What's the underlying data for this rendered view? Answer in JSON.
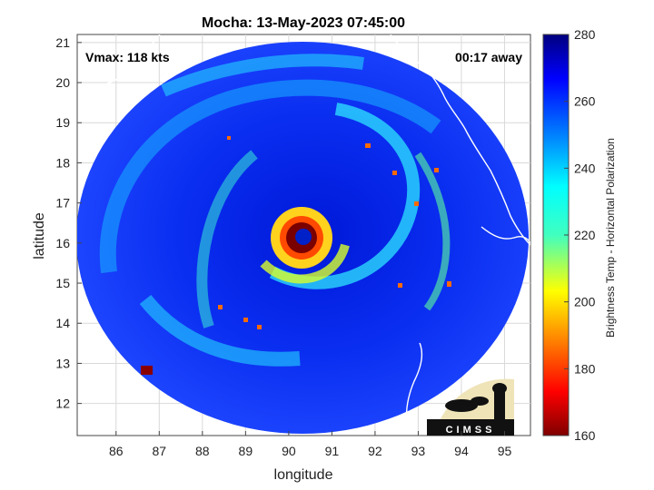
{
  "chart_data": {
    "type": "heatmap",
    "title": "Mocha: 13-May-2023 07:45:00",
    "xlabel": "longitude",
    "ylabel": "latitude",
    "xlim": [
      85.1,
      95.6
    ],
    "ylim": [
      11.2,
      21.2
    ],
    "x_ticks": [
      86,
      87,
      88,
      89,
      90,
      91,
      92,
      93,
      94,
      95
    ],
    "y_ticks": [
      12,
      13,
      14,
      15,
      16,
      17,
      18,
      19,
      20,
      21
    ],
    "grid": true,
    "storm_center": {
      "lon": 90.3,
      "lat": 16.1
    },
    "annotations": {
      "vmax": "Vmax: 118 kts",
      "time_offset": "00:17 away"
    },
    "colorbar": {
      "label": "Brightness Temp - Horizontal Polarization",
      "range": [
        160,
        280
      ],
      "ticks": [
        160,
        180,
        200,
        220,
        240,
        260,
        280
      ],
      "colormap": "jet"
    },
    "logo_text": "CIMSS"
  },
  "colors": {
    "background": "#ffffff",
    "grid": "#d9d9d9",
    "coast": "#ffffff",
    "eye": "#7a0000"
  }
}
